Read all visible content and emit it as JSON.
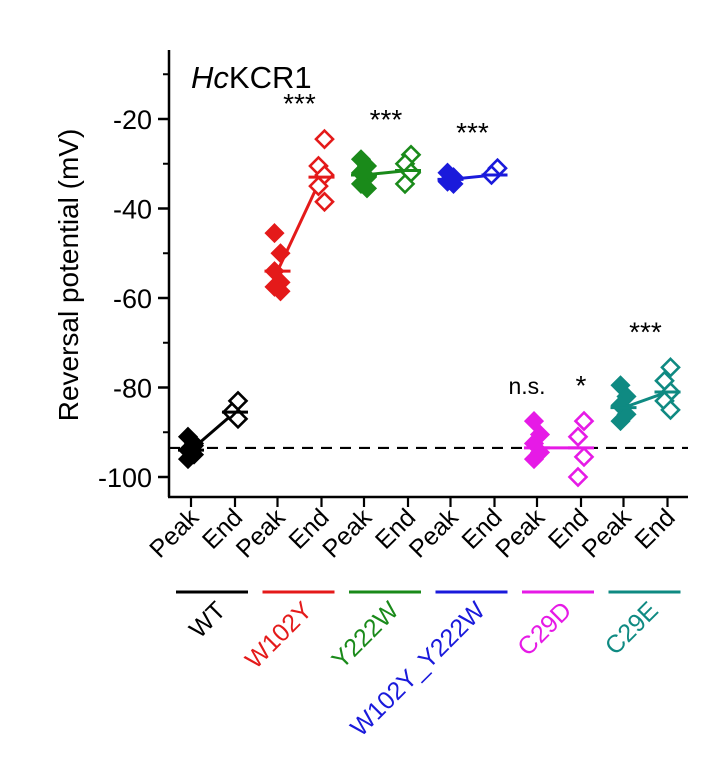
{
  "chart_data": {
    "type": "scatter",
    "title": "HcKCR1",
    "title_prefix_italic": "Hc",
    "title_suffix": "KCR1",
    "ylabel": "Reversal potential (mV)",
    "xlabel": "",
    "ylim": [
      -105,
      -5
    ],
    "yticks": [
      -20,
      -40,
      -60,
      -80,
      -100
    ],
    "reference_line": -93.5,
    "x_tick_labels": [
      "Peak",
      "End"
    ],
    "groups": [
      {
        "name": "WT",
        "color": "#000000",
        "significance": "",
        "peak_values": [
          -91,
          -92.5,
          -94,
          -95,
          -96,
          -93
        ],
        "end_values": [
          -83,
          -85.5,
          -87
        ],
        "peak_mean": -94,
        "end_mean": -85.5
      },
      {
        "name": "W102Y",
        "color": "#e41a1a",
        "significance": "***",
        "peak_values": [
          -45.5,
          -50,
          -54,
          -56.5,
          -57.5,
          -58.5
        ],
        "end_values": [
          -24.5,
          -30.5,
          -32.5,
          -35,
          -38.5
        ],
        "peak_mean": -54,
        "end_mean": -33
      },
      {
        "name": "Y222W",
        "color": "#1a8a1a",
        "significance": "***",
        "peak_values": [
          -29,
          -30.5,
          -32,
          -33,
          -34.5,
          -35.5
        ],
        "end_values": [
          -28,
          -30,
          -32,
          -34.5
        ],
        "peak_mean": -32.5,
        "end_mean": -31.5
      },
      {
        "name": "W102Y_Y222W",
        "color": "#1a1adb",
        "significance": "***",
        "peak_values": [
          -32,
          -33,
          -34,
          -34.5
        ],
        "end_values": [
          -31,
          -32.5
        ],
        "peak_mean": -33.5,
        "end_mean": -32.5
      },
      {
        "name": "C29D",
        "color": "#e61ae6",
        "significance_peak": "n.s.",
        "significance": "*",
        "peak_values": [
          -87.5,
          -90.5,
          -92.5,
          -94.5,
          -96
        ],
        "end_values": [
          -87.5,
          -91,
          -95.5,
          -100
        ],
        "peak_mean": -93.5,
        "end_mean": -93.5
      },
      {
        "name": "C29E",
        "color": "#0f8a82",
        "significance": "***",
        "peak_values": [
          -79.5,
          -82,
          -84,
          -86,
          -87.5
        ],
        "end_values": [
          -75.5,
          -78.5,
          -81,
          -83,
          -85
        ],
        "peak_mean": -84.5,
        "end_mean": -81
      }
    ]
  }
}
